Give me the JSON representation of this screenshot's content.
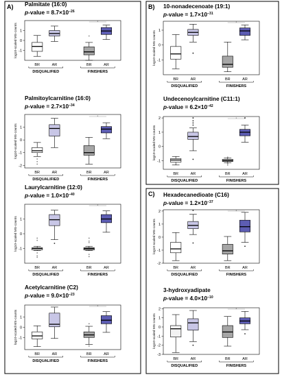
{
  "sections": [
    {
      "label": "A)"
    },
    {
      "label": "B)"
    },
    {
      "label": "C)"
    }
  ],
  "chart_data": [
    {
      "type": "box",
      "title": "Palmitate (16:0)",
      "pvalue": {
        "prefix": "p",
        "text": "-value = 8.7×10",
        "exp": "−26"
      },
      "ylabel": "log10-scaled MS-counts",
      "ylim": [
        -2,
        2
      ],
      "yticks": [
        "-1",
        "0",
        "1"
      ],
      "groups": [
        "DISQUALIFIED",
        "FINISHERS"
      ],
      "boxes": [
        {
          "cat": "BR",
          "min": -1.6,
          "q1": -1.1,
          "median": -0.6,
          "q3": -0.2,
          "max": 0.5,
          "outliers": [],
          "fill": "#ffffff"
        },
        {
          "cat": "AR",
          "min": -0.1,
          "q1": 0.45,
          "median": 0.7,
          "q3": 1.0,
          "max": 1.45,
          "outliers": [],
          "fill": "#c8c6e6"
        },
        {
          "cat": "BR",
          "min": -2.0,
          "q1": -1.45,
          "median": -1.15,
          "q3": -0.65,
          "max": -0.2,
          "outliers": [
            0.45
          ],
          "fill": "#a6a6a6"
        },
        {
          "cat": "AR",
          "min": 0.1,
          "q1": 0.6,
          "median": 0.95,
          "q3": 1.3,
          "max": 1.55,
          "outliers": [],
          "fill": "#5d5db3"
        }
      ]
    },
    {
      "type": "box",
      "title": "Palmitoylcarnitine (16:0)",
      "pvalue": {
        "prefix": "p",
        "text": "-value = 2.7×10",
        "exp": "−34"
      },
      "ylabel": "log10-scaled MS-counts",
      "ylim": [
        -2.2,
        2
      ],
      "yticks": [
        "-2",
        "-1",
        "0",
        "1"
      ],
      "groups": [
        "DISQUALIFIED",
        "FINISHERS"
      ],
      "boxes": [
        {
          "cat": "BR",
          "min": -1.3,
          "q1": -1.0,
          "median": -0.85,
          "q3": -0.6,
          "max": -0.2,
          "outliers": [
            -1.5,
            -1.7,
            -1.9
          ],
          "fill": "#ffffff"
        },
        {
          "cat": "AR",
          "min": -0.6,
          "q1": 0.3,
          "median": 0.9,
          "q3": 1.2,
          "max": 1.7,
          "outliers": [],
          "fill": "#c8c6e6"
        },
        {
          "cat": "BR",
          "min": -1.9,
          "q1": -1.2,
          "median": -1.0,
          "q3": -0.45,
          "max": 0.2,
          "outliers": [],
          "fill": "#a6a6a6"
        },
        {
          "cat": "AR",
          "min": 0.1,
          "q1": 0.55,
          "median": 0.85,
          "q3": 1.05,
          "max": 1.35,
          "outliers": [],
          "fill": "#5d5db3"
        }
      ]
    },
    {
      "type": "box",
      "title": "Laurylcarnitine (12:0)",
      "pvalue": {
        "prefix": "p",
        "text": "-value = 1.0×10",
        "exp": "−40"
      },
      "ylabel": "log10-scaled MS-counts",
      "ylim": [
        -2,
        2
      ],
      "yticks": [
        "-1",
        "0",
        "1"
      ],
      "groups": [
        "DISQUALIFIED",
        "FINISHERS"
      ],
      "boxes": [
        {
          "cat": "BR",
          "min": -1.15,
          "q1": -1.1,
          "median": -1.0,
          "q3": -0.95,
          "max": -0.85,
          "outliers": [
            -0.3,
            -0.45,
            -1.3,
            -1.5,
            -1.6
          ],
          "fill": "#ffffff"
        },
        {
          "cat": "AR",
          "min": -0.4,
          "q1": 0.55,
          "median": 0.95,
          "q3": 1.3,
          "max": 1.6,
          "outliers": [
            -0.65
          ],
          "fill": "#c8c6e6"
        },
        {
          "cat": "BR",
          "min": -1.15,
          "q1": -1.1,
          "median": -1.0,
          "q3": -0.95,
          "max": -0.85,
          "outliers": [
            -0.3,
            -0.5,
            -0.6,
            -1.4,
            -1.55
          ],
          "fill": "#a6a6a6"
        },
        {
          "cat": "AR",
          "min": 0.1,
          "q1": 0.75,
          "median": 1.0,
          "q3": 1.3,
          "max": 1.55,
          "outliers": [],
          "fill": "#5d5db3"
        }
      ]
    },
    {
      "type": "box",
      "title": "Acetylcarnitine (C2)",
      "pvalue": {
        "prefix": "p",
        "text": "-value = 9.0×10",
        "exp": "−23"
      },
      "ylabel": "log10-scaled MS-counts",
      "ylim": [
        -2.2,
        2.2
      ],
      "yticks": [
        "-1",
        "0",
        "1"
      ],
      "groups": [
        "DISQUALIFIED",
        "FINISHERS"
      ],
      "boxes": [
        {
          "cat": "BR",
          "min": -1.9,
          "q1": -1.15,
          "median": -0.85,
          "q3": -0.45,
          "max": 0.15,
          "outliers": [],
          "fill": "#ffffff"
        },
        {
          "cat": "AR",
          "min": -1.1,
          "q1": 0.05,
          "median": 0.3,
          "q3": 1.4,
          "max": 2.0,
          "outliers": [],
          "fill": "#c8c6e6"
        },
        {
          "cat": "BR",
          "min": -1.7,
          "q1": -1.0,
          "median": -0.75,
          "q3": -0.45,
          "max": 0.1,
          "outliers": [
            0.35,
            -1.85
          ],
          "fill": "#a6a6a6"
        },
        {
          "cat": "AR",
          "min": -0.5,
          "q1": 0.35,
          "median": 0.7,
          "q3": 1.15,
          "max": 1.55,
          "outliers": [],
          "fill": "#5d5db3"
        }
      ]
    },
    {
      "type": "box",
      "title": "10-nonadecenoate (19:1)",
      "pvalue": {
        "prefix": "p",
        "text": "-value = 1.7×10",
        "exp": "−31"
      },
      "ylabel": "log10-scaled MS-counts",
      "ylim": [
        -2,
        1.6
      ],
      "yticks": [
        "-1",
        "0",
        "1"
      ],
      "groups": [
        "DISQUALIFIED",
        "FINISHERS"
      ],
      "boxes": [
        {
          "cat": "BR",
          "min": -1.6,
          "q1": -0.95,
          "median": -0.6,
          "q3": -0.1,
          "max": 0.7,
          "outliers": [],
          "fill": "#ffffff"
        },
        {
          "cat": "AR",
          "min": 0.2,
          "q1": 0.65,
          "median": 0.85,
          "q3": 1.05,
          "max": 1.4,
          "outliers": [
            -0.55
          ],
          "fill": "#c8c6e6"
        },
        {
          "cat": "BR",
          "min": -1.8,
          "q1": -1.5,
          "median": -1.3,
          "q3": -0.75,
          "max": 0.2,
          "outliers": [],
          "fill": "#a6a6a6"
        },
        {
          "cat": "AR",
          "min": 0.35,
          "q1": 0.65,
          "median": 0.95,
          "q3": 1.15,
          "max": 1.35,
          "outliers": [],
          "fill": "#5d5db3"
        }
      ]
    },
    {
      "type": "box",
      "title": "Undecenoylcarnitine (C11:1)",
      "pvalue": {
        "prefix": "p",
        "text": "-value = 6.2×10",
        "exp": "−42"
      },
      "ylabel": "log10-scaled MS-counts",
      "ylim": [
        -1.6,
        2.1
      ],
      "yticks": [
        "-1",
        "0",
        "1",
        "2"
      ],
      "groups": [
        "DISQUALIFIED",
        "FINISHERS"
      ],
      "boxes": [
        {
          "cat": "BR",
          "min": -1.3,
          "q1": -1.1,
          "median": -0.95,
          "q3": -0.85,
          "max": -0.7,
          "outliers": [],
          "fill": "#ffffff"
        },
        {
          "cat": "AR",
          "min": -0.3,
          "q1": 0.5,
          "median": 0.7,
          "q3": 1.0,
          "max": 1.3,
          "outliers": [
            1.5,
            1.65,
            1.8,
            2.0,
            -0.9
          ],
          "fill": "#c8c6e6"
        },
        {
          "cat": "BR",
          "min": -1.15,
          "q1": -1.05,
          "median": -1.0,
          "q3": -0.9,
          "max": -0.8,
          "outliers": [
            -0.75,
            -1.2,
            -1.3
          ],
          "fill": "#a6a6a6"
        },
        {
          "cat": "AR",
          "min": 0.3,
          "q1": 0.75,
          "median": 1.0,
          "q3": 1.2,
          "max": 1.5,
          "outliers": [
            2.0
          ],
          "fill": "#5d5db3"
        }
      ]
    },
    {
      "type": "box",
      "title": "Hexadecanedioate (C16)",
      "pvalue": {
        "prefix": "p",
        "text": "-value = 1.2×10",
        "exp": "−37"
      },
      "ylabel": "log10-scaled MS-counts",
      "ylim": [
        -2,
        2.1
      ],
      "yticks": [
        "-2",
        "-1",
        "0",
        "1",
        "2"
      ],
      "groups": [
        "DISQUALIFIED",
        "FINISHERS"
      ],
      "boxes": [
        {
          "cat": "BR",
          "min": -1.8,
          "q1": -1.2,
          "median": -0.9,
          "q3": -0.4,
          "max": 0.35,
          "outliers": [],
          "fill": "#ffffff"
        },
        {
          "cat": "AR",
          "min": 0.2,
          "q1": 0.65,
          "median": 0.9,
          "q3": 1.2,
          "max": 1.75,
          "outliers": [
            2.05,
            -0.45
          ],
          "fill": "#c8c6e6"
        },
        {
          "cat": "BR",
          "min": -1.8,
          "q1": -1.3,
          "median": -1.05,
          "q3": -0.55,
          "max": 0.05,
          "outliers": [],
          "fill": "#a6a6a6"
        },
        {
          "cat": "AR",
          "min": -0.4,
          "q1": 0.4,
          "median": 0.8,
          "q3": 1.3,
          "max": 1.9,
          "outliers": [
            -0.7
          ],
          "fill": "#5d5db3"
        }
      ]
    },
    {
      "type": "box",
      "title": "3-hydroxyadipate",
      "pvalue": {
        "prefix": "p",
        "text": "-value = 4.0×10",
        "exp": "−10"
      },
      "ylabel": "log10-scaled MS-counts",
      "ylim": [
        -3,
        2.1
      ],
      "yticks": [
        "-3",
        "-2",
        "-1",
        "0",
        "1",
        "2"
      ],
      "groups": [
        "DISQUALIFIED",
        "FINISHERS"
      ],
      "boxes": [
        {
          "cat": "BR",
          "min": -2.8,
          "q1": -1.1,
          "median": -0.2,
          "q3": 0.15,
          "max": 1.35,
          "outliers": [],
          "fill": "#f2f2f2"
        },
        {
          "cat": "AR",
          "min": -1.6,
          "q1": -0.35,
          "median": 0.45,
          "q3": 0.9,
          "max": 1.8,
          "outliers": [
            -2.0
          ],
          "fill": "#c8c6e6"
        },
        {
          "cat": "BR",
          "min": -2.1,
          "q1": -1.15,
          "median": -0.55,
          "q3": 0.15,
          "max": 1.15,
          "outliers": [],
          "fill": "#a6a6a6"
        },
        {
          "cat": "AR",
          "min": -0.3,
          "q1": 0.35,
          "median": 0.65,
          "q3": 1.0,
          "max": 1.7,
          "outliers": [
            -0.75
          ],
          "fill": "#5d5db3"
        }
      ]
    }
  ]
}
